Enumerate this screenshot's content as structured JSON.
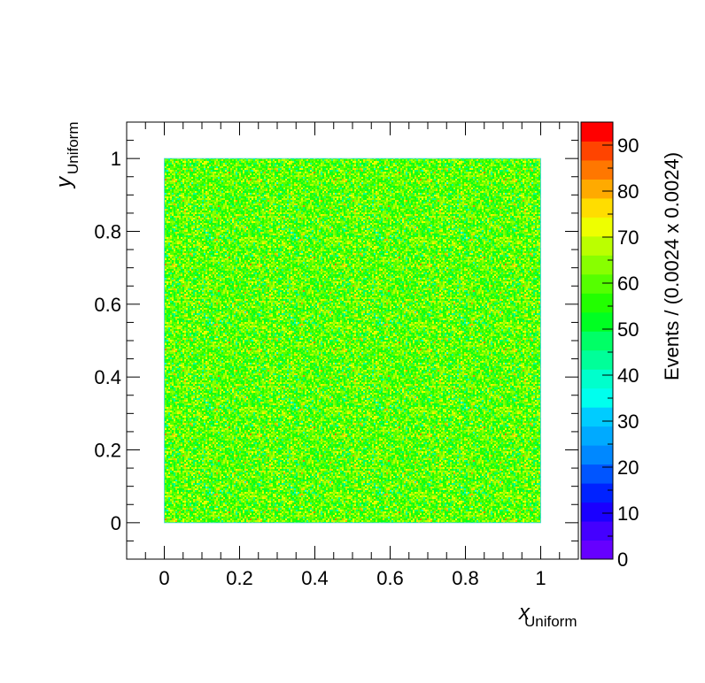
{
  "chart_data": {
    "type": "heatmap",
    "title": "",
    "xlabel": {
      "main": "x",
      "sub": "Uniform"
    },
    "ylabel": {
      "main": "y",
      "sub": "Uniform"
    },
    "zlabel": "Events / (0.0024 x 0.0024)",
    "xlim": [
      -0.1,
      1.1
    ],
    "ylim": [
      -0.1,
      1.1
    ],
    "zlim": [
      0,
      95
    ],
    "x_ticks": [
      "0",
      "0.2",
      "0.4",
      "0.6",
      "0.8",
      "1"
    ],
    "x_tick_values": [
      0,
      0.2,
      0.4,
      0.6,
      0.8,
      1
    ],
    "y_ticks": [
      "0",
      "0.2",
      "0.4",
      "0.6",
      "0.8",
      "1"
    ],
    "y_tick_values": [
      0,
      0.2,
      0.4,
      0.6,
      0.8,
      1
    ],
    "z_ticks": [
      "0",
      "10",
      "20",
      "30",
      "40",
      "50",
      "60",
      "70",
      "80",
      "90"
    ],
    "z_tick_values": [
      0,
      10,
      20,
      30,
      40,
      50,
      60,
      70,
      80,
      90
    ],
    "filled_region": {
      "x": [
        0,
        1
      ],
      "y": [
        0,
        1
      ]
    },
    "bin_size": 0.0024,
    "typical_bin_content": 60,
    "bin_content_range_dominant": [
      50,
      75
    ],
    "palette": [
      "#6600ff",
      "#4400ff",
      "#1a00ff",
      "#0022ff",
      "#0055ff",
      "#0088ff",
      "#00aaff",
      "#00ccff",
      "#00ffee",
      "#00ffcc",
      "#00ff99",
      "#00ff66",
      "#00ff22",
      "#22ff00",
      "#55ff00",
      "#88ff00",
      "#bbff00",
      "#eeff00",
      "#ffdd00",
      "#ffaa00",
      "#ff7700",
      "#ff4400",
      "#ff0000"
    ],
    "grid": false,
    "legend": "colorbar-right"
  }
}
